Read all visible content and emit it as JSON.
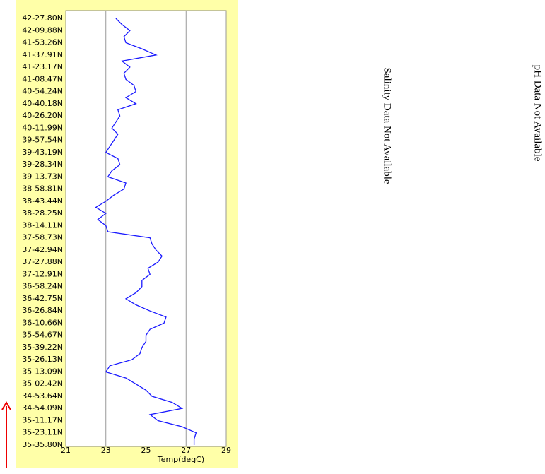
{
  "chart_data": {
    "type": "line",
    "orientation": "horizontal",
    "x_label": "Temp(degC)",
    "categories": [
      "42-27.80N",
      null,
      "42-09.88N",
      null,
      "41-53.26N",
      null,
      "41-37.91N",
      null,
      "41-23.17N",
      null,
      "41-08.47N",
      null,
      "40-54.24N",
      null,
      "40-40.18N",
      null,
      "40-26.20N",
      null,
      "40-11.99N",
      null,
      "39-57.54N",
      null,
      "39-43.19N",
      null,
      "39-28.34N",
      null,
      "39-13.73N",
      null,
      "38-58.81N",
      null,
      "38-43.44N",
      null,
      "38-28.25N",
      null,
      "38-14.11N",
      null,
      "37-58.73N",
      null,
      "37-42.94N",
      null,
      "37-27.88N",
      null,
      "37-12.91N",
      null,
      "36-58.24N",
      null,
      "36-42.75N",
      null,
      "36-26.84N",
      null,
      "36-10.66N",
      null,
      "35-54.67N",
      null,
      "35-39.22N",
      null,
      "35-26.13N",
      null,
      "35-13.09N",
      null,
      "35-02.42N",
      null,
      "34-53.64N",
      null,
      "34-54.09N",
      null,
      "35-11.17N",
      null,
      "35-23.11N",
      null,
      "35-35.80N"
    ],
    "series": [
      {
        "color": "#1a1aff",
        "values": [
          23.5,
          23.8,
          24.2,
          23.9,
          24.0,
          24.8,
          25.5,
          23.8,
          24.2,
          23.9,
          24.0,
          24.4,
          24.5,
          24.0,
          24.5,
          23.6,
          23.7,
          23.5,
          23.3,
          23.6,
          23.4,
          23.2,
          23.0,
          23.6,
          23.7,
          23.3,
          23.1,
          24.0,
          23.9,
          23.4,
          23.0,
          22.5,
          23.0,
          22.6,
          23.0,
          23.1,
          25.2,
          25.3,
          25.5,
          25.8,
          25.6,
          25.1,
          25.2,
          24.8,
          24.8,
          24.5,
          24.0,
          24.5,
          25.2,
          26.0,
          25.9,
          25.2,
          25.0,
          25.0,
          24.8,
          24.7,
          24.3,
          23.2,
          23.0,
          24.0,
          24.5,
          25.0,
          25.3,
          26.3,
          26.8,
          25.2,
          25.6,
          26.8,
          27.5,
          27.4,
          27.4
        ]
      }
    ],
    "xlim": [
      21,
      29
    ],
    "xticks": [
      21,
      23,
      25,
      27,
      29
    ],
    "grid": true,
    "notes": [
      "Salinity Data Not Available",
      "pH Data Not Available"
    ]
  }
}
